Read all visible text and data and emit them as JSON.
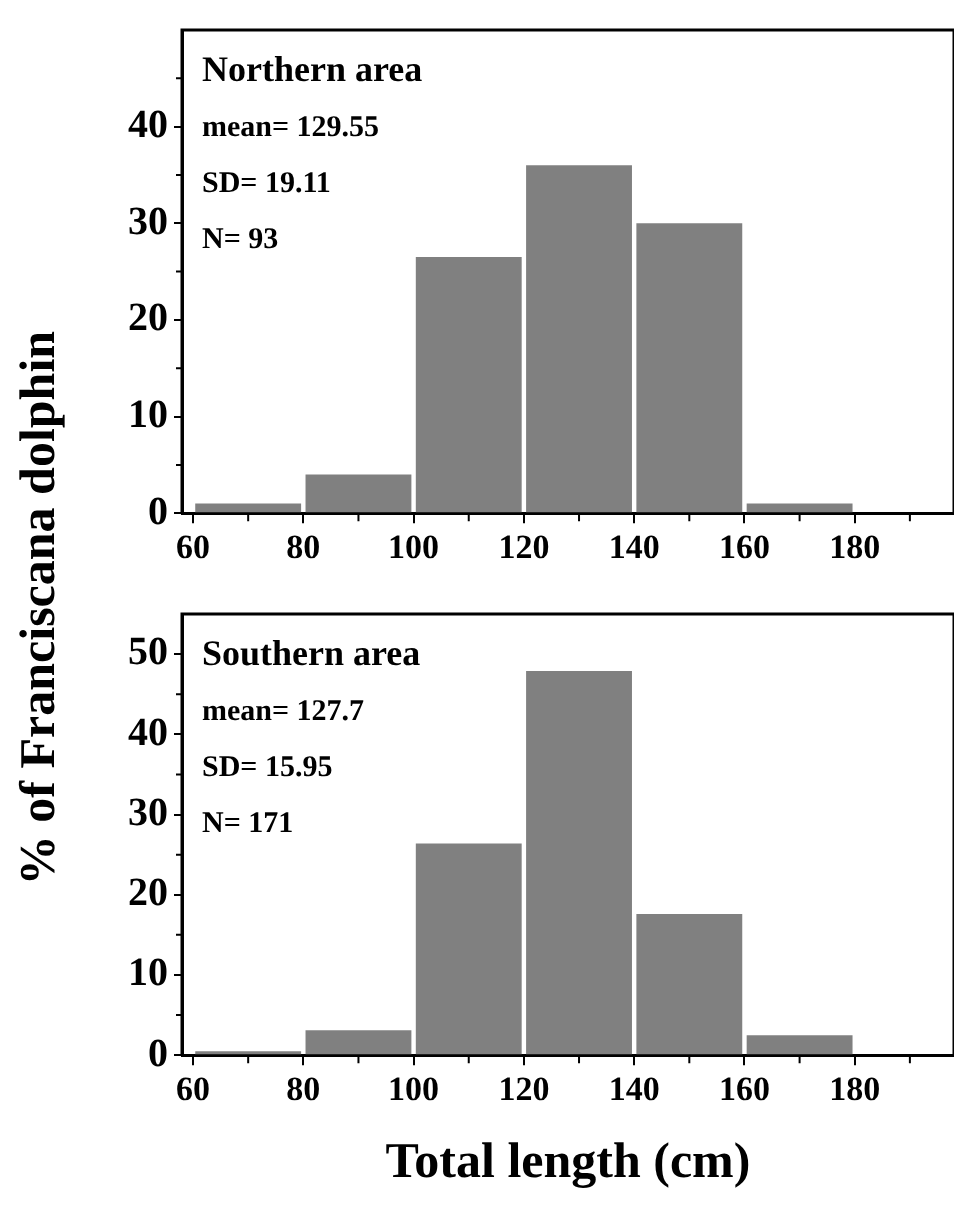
{
  "chart_data": [
    {
      "type": "histogram",
      "title": "Northern area",
      "ylabel": "%  of Franciscana dolphin",
      "annotations": [
        "mean= 129.55",
        "SD= 19.11",
        "N= 93"
      ],
      "bins": [
        60,
        80,
        100,
        120,
        140,
        160,
        180,
        200
      ],
      "values": [
        1,
        4,
        26.5,
        36,
        30,
        1,
        0
      ],
      "color": "#808080",
      "xlim": [
        58,
        198
      ],
      "ylim": [
        0,
        50
      ],
      "xticks": [
        60,
        {
          "value": 70,
          "label": null
        },
        80,
        {
          "value": 90,
          "label": null
        },
        100,
        {
          "value": 110,
          "label": null
        },
        120,
        {
          "value": 130,
          "label": null
        },
        140,
        {
          "value": 150,
          "label": null
        },
        160,
        {
          "value": 170,
          "label": null
        },
        180,
        {
          "value": 190,
          "label": null
        }
      ],
      "yticks": [
        0,
        {
          "value": 5,
          "label": null
        },
        10,
        {
          "value": 15,
          "label": null
        },
        20,
        {
          "value": 25,
          "label": null
        },
        30,
        {
          "value": 35,
          "label": null
        },
        40,
        {
          "value": 45,
          "label": null
        }
      ],
      "grid": false,
      "legend": false
    },
    {
      "type": "histogram",
      "title": "Southern area",
      "xlabel": "Total length (cm)",
      "annotations": [
        "mean= 127.7",
        "SD= 15.95",
        "N= 171"
      ],
      "bins": [
        60,
        80,
        100,
        120,
        140,
        160,
        180,
        200
      ],
      "values": [
        0.5,
        3.1,
        26.4,
        47.9,
        17.6,
        2.5,
        0
      ],
      "color": "#808080",
      "xlim": [
        58,
        198
      ],
      "ylim": [
        0,
        55
      ],
      "xticks": [
        60,
        {
          "value": 70,
          "label": null
        },
        80,
        {
          "value": 90,
          "label": null
        },
        100,
        {
          "value": 110,
          "label": null
        },
        120,
        {
          "value": 130,
          "label": null
        },
        140,
        {
          "value": 150,
          "label": null
        },
        160,
        {
          "value": 170,
          "label": null
        },
        180,
        {
          "value": 190,
          "label": null
        }
      ],
      "yticks": [
        0,
        {
          "value": 5,
          "label": null
        },
        10,
        {
          "value": 15,
          "label": null
        },
        20,
        {
          "value": 25,
          "label": null
        },
        30,
        {
          "value": 35,
          "label": null
        },
        40,
        {
          "value": 45,
          "label": null
        },
        50
      ],
      "grid": false,
      "legend": false
    }
  ]
}
